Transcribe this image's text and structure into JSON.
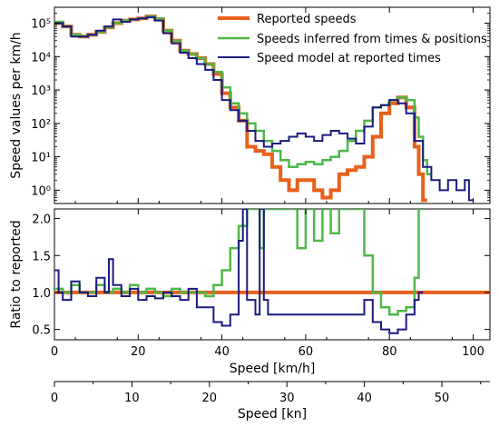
{
  "chart_data": [
    {
      "type": "line",
      "panel": "top",
      "ylabel": "Speed values per km/h",
      "yscale": "log",
      "ylim": [
        0.4,
        300000
      ],
      "xlim": [
        0,
        104
      ],
      "ytick_labels": [
        "10⁰",
        "10¹",
        "10²",
        "10³",
        "10⁴",
        "10⁵"
      ],
      "legend": {
        "placement": "top-right"
      },
      "series": [
        {
          "name": "Reported speeds",
          "color": "#e8601c",
          "points": [
            [
              0,
              100000
            ],
            [
              2,
              80000
            ],
            [
              4,
              45000
            ],
            [
              6,
              40000
            ],
            [
              8,
              45000
            ],
            [
              10,
              55000
            ],
            [
              12,
              75000
            ],
            [
              14,
              100000
            ],
            [
              16,
              120000
            ],
            [
              18,
              130000
            ],
            [
              20,
              140000
            ],
            [
              22,
              160000
            ],
            [
              24,
              130000
            ],
            [
              26,
              60000
            ],
            [
              28,
              30000
            ],
            [
              30,
              15000
            ],
            [
              32,
              12000
            ],
            [
              34,
              9000
            ],
            [
              36,
              6000
            ],
            [
              38,
              3000
            ],
            [
              40,
              800
            ],
            [
              42,
              300
            ],
            [
              44,
              120
            ],
            [
              46,
              20
            ],
            [
              48,
              15
            ],
            [
              50,
              12
            ],
            [
              52,
              5
            ],
            [
              54,
              2
            ],
            [
              56,
              1
            ],
            [
              58,
              2
            ],
            [
              60,
              2
            ],
            [
              62,
              1
            ],
            [
              64,
              0.6
            ],
            [
              66,
              1
            ],
            [
              68,
              3
            ],
            [
              70,
              4
            ],
            [
              72,
              5
            ],
            [
              74,
              10
            ],
            [
              76,
              40
            ],
            [
              78,
              200
            ],
            [
              80,
              400
            ],
            [
              82,
              600
            ],
            [
              84,
              300
            ],
            [
              86,
              20
            ],
            [
              87,
              3
            ],
            [
              88,
              0.5
            ]
          ]
        },
        {
          "name": "Speeds inferred from times & positions",
          "color": "#4eb848",
          "points": [
            [
              0,
              110000
            ],
            [
              2,
              80000
            ],
            [
              4,
              45000
            ],
            [
              6,
              40000
            ],
            [
              8,
              45000
            ],
            [
              10,
              55000
            ],
            [
              12,
              75000
            ],
            [
              14,
              100000
            ],
            [
              16,
              120000
            ],
            [
              18,
              130000
            ],
            [
              20,
              140000
            ],
            [
              22,
              160000
            ],
            [
              24,
              140000
            ],
            [
              26,
              60000
            ],
            [
              28,
              30000
            ],
            [
              30,
              15000
            ],
            [
              32,
              12000
            ],
            [
              34,
              9000
            ],
            [
              36,
              6000
            ],
            [
              38,
              3500
            ],
            [
              40,
              1200
            ],
            [
              42,
              400
            ],
            [
              44,
              200
            ],
            [
              46,
              100
            ],
            [
              48,
              60
            ],
            [
              50,
              30
            ],
            [
              52,
              15
            ],
            [
              54,
              8
            ],
            [
              56,
              5
            ],
            [
              58,
              6
            ],
            [
              60,
              7
            ],
            [
              62,
              6
            ],
            [
              64,
              8
            ],
            [
              66,
              10
            ],
            [
              68,
              15
            ],
            [
              70,
              30
            ],
            [
              72,
              60
            ],
            [
              74,
              120
            ],
            [
              76,
              300
            ],
            [
              78,
              350
            ],
            [
              80,
              500
            ],
            [
              82,
              600
            ],
            [
              84,
              500
            ],
            [
              86,
              150
            ],
            [
              87,
              40
            ],
            [
              88,
              8
            ],
            [
              89,
              3
            ]
          ]
        },
        {
          "name": "Speed model at reported times",
          "color": "#1b1b80",
          "points": [
            [
              0,
              100000
            ],
            [
              2,
              80000
            ],
            [
              4,
              40000
            ],
            [
              6,
              40000
            ],
            [
              8,
              45000
            ],
            [
              10,
              60000
            ],
            [
              12,
              80000
            ],
            [
              14,
              130000
            ],
            [
              16,
              110000
            ],
            [
              18,
              130000
            ],
            [
              20,
              140000
            ],
            [
              22,
              150000
            ],
            [
              24,
              120000
            ],
            [
              26,
              50000
            ],
            [
              28,
              25000
            ],
            [
              30,
              13000
            ],
            [
              32,
              9000
            ],
            [
              34,
              6000
            ],
            [
              36,
              4000
            ],
            [
              38,
              2000
            ],
            [
              40,
              500
            ],
            [
              42,
              250
            ],
            [
              44,
              120
            ],
            [
              46,
              60
            ],
            [
              48,
              30
            ],
            [
              50,
              20
            ],
            [
              52,
              25
            ],
            [
              54,
              30
            ],
            [
              56,
              40
            ],
            [
              58,
              50
            ],
            [
              60,
              40
            ],
            [
              62,
              30
            ],
            [
              64,
              45
            ],
            [
              66,
              60
            ],
            [
              68,
              50
            ],
            [
              70,
              35
            ],
            [
              72,
              25
            ],
            [
              74,
              80
            ],
            [
              76,
              300
            ],
            [
              78,
              350
            ],
            [
              80,
              500
            ],
            [
              82,
              400
            ],
            [
              84,
              200
            ],
            [
              86,
              30
            ],
            [
              88,
              5
            ],
            [
              90,
              2
            ],
            [
              92,
              1
            ],
            [
              94,
              2
            ],
            [
              96,
              1
            ],
            [
              98,
              2
            ],
            [
              99,
              0.5
            ]
          ]
        }
      ]
    },
    {
      "type": "line",
      "panel": "bottom",
      "ylabel": "Ratio to reported",
      "ylim": [
        0.36,
        2.13
      ],
      "xlim": [
        0,
        104
      ],
      "ytick_labels": [
        "0.5",
        "1.0",
        "1.5",
        "2.0"
      ],
      "yticks": [
        0.5,
        1.0,
        1.5,
        2.0
      ],
      "series": [
        {
          "name": "Reported speeds",
          "color": "#e8601c",
          "points": [
            [
              0,
              1.0
            ],
            [
              104,
              1.0
            ]
          ]
        },
        {
          "name": "Speeds inferred from times & positions",
          "color": "#4eb848",
          "points": [
            [
              0,
              1.05
            ],
            [
              2,
              1.0
            ],
            [
              4,
              1.1
            ],
            [
              6,
              1.0
            ],
            [
              8,
              1.0
            ],
            [
              10,
              1.1
            ],
            [
              12,
              1.0
            ],
            [
              14,
              1.05
            ],
            [
              16,
              1.0
            ],
            [
              18,
              1.1
            ],
            [
              20,
              1.0
            ],
            [
              22,
              1.05
            ],
            [
              24,
              1.0
            ],
            [
              26,
              0.95
            ],
            [
              28,
              1.05
            ],
            [
              30,
              1.0
            ],
            [
              32,
              1.0
            ],
            [
              34,
              1.0
            ],
            [
              36,
              0.95
            ],
            [
              38,
              1.1
            ],
            [
              40,
              1.3
            ],
            [
              42,
              1.6
            ],
            [
              44,
              1.9
            ],
            [
              46,
              2.2
            ],
            [
              48,
              2.2
            ],
            [
              49,
              1.6
            ],
            [
              50,
              2.2
            ],
            [
              56,
              2.2
            ],
            [
              58,
              1.6
            ],
            [
              60,
              2.2
            ],
            [
              62,
              1.7
            ],
            [
              64,
              2.2
            ],
            [
              66,
              1.8
            ],
            [
              68,
              2.2
            ],
            [
              70,
              2.2
            ],
            [
              72,
              2.2
            ],
            [
              74,
              1.5
            ],
            [
              76,
              1.0
            ],
            [
              78,
              0.8
            ],
            [
              80,
              0.7
            ],
            [
              82,
              0.75
            ],
            [
              84,
              0.8
            ],
            [
              86,
              1.2
            ],
            [
              87,
              2.2
            ]
          ]
        },
        {
          "name": "Speed model at reported times",
          "color": "#1b1b80",
          "points": [
            [
              0,
              1.3
            ],
            [
              1,
              1.0
            ],
            [
              2,
              0.9
            ],
            [
              4,
              1.15
            ],
            [
              6,
              1.0
            ],
            [
              8,
              0.95
            ],
            [
              10,
              1.2
            ],
            [
              12,
              1.0
            ],
            [
              13,
              1.45
            ],
            [
              14,
              1.1
            ],
            [
              16,
              0.95
            ],
            [
              18,
              1.05
            ],
            [
              20,
              0.9
            ],
            [
              22,
              0.95
            ],
            [
              24,
              0.92
            ],
            [
              26,
              1.0
            ],
            [
              28,
              0.95
            ],
            [
              30,
              0.9
            ],
            [
              32,
              1.05
            ],
            [
              34,
              0.8
            ],
            [
              36,
              0.8
            ],
            [
              38,
              0.6
            ],
            [
              40,
              0.55
            ],
            [
              42,
              0.7
            ],
            [
              44,
              1.7
            ],
            [
              45,
              2.2
            ],
            [
              46,
              0.9
            ],
            [
              48,
              0.7
            ],
            [
              49,
              2.2
            ],
            [
              50,
              0.9
            ],
            [
              51,
              0.7
            ],
            [
              74,
              0.9
            ],
            [
              76,
              0.6
            ],
            [
              78,
              0.5
            ],
            [
              80,
              0.45
            ],
            [
              82,
              0.5
            ],
            [
              84,
              0.7
            ],
            [
              86,
              0.9
            ],
            [
              87,
              1.0
            ]
          ]
        }
      ]
    },
    {
      "type": "axis",
      "panel": "secondary-x",
      "xlabel": "Speed [kn]",
      "xlim": [
        0,
        56.2
      ]
    }
  ],
  "axes": {
    "x_kmh_label": "Speed [km/h]",
    "x_kmh_ticks": [
      0,
      20,
      40,
      60,
      80,
      100
    ],
    "x_kn_ticks": [
      0,
      10,
      20,
      30,
      40,
      50
    ]
  }
}
